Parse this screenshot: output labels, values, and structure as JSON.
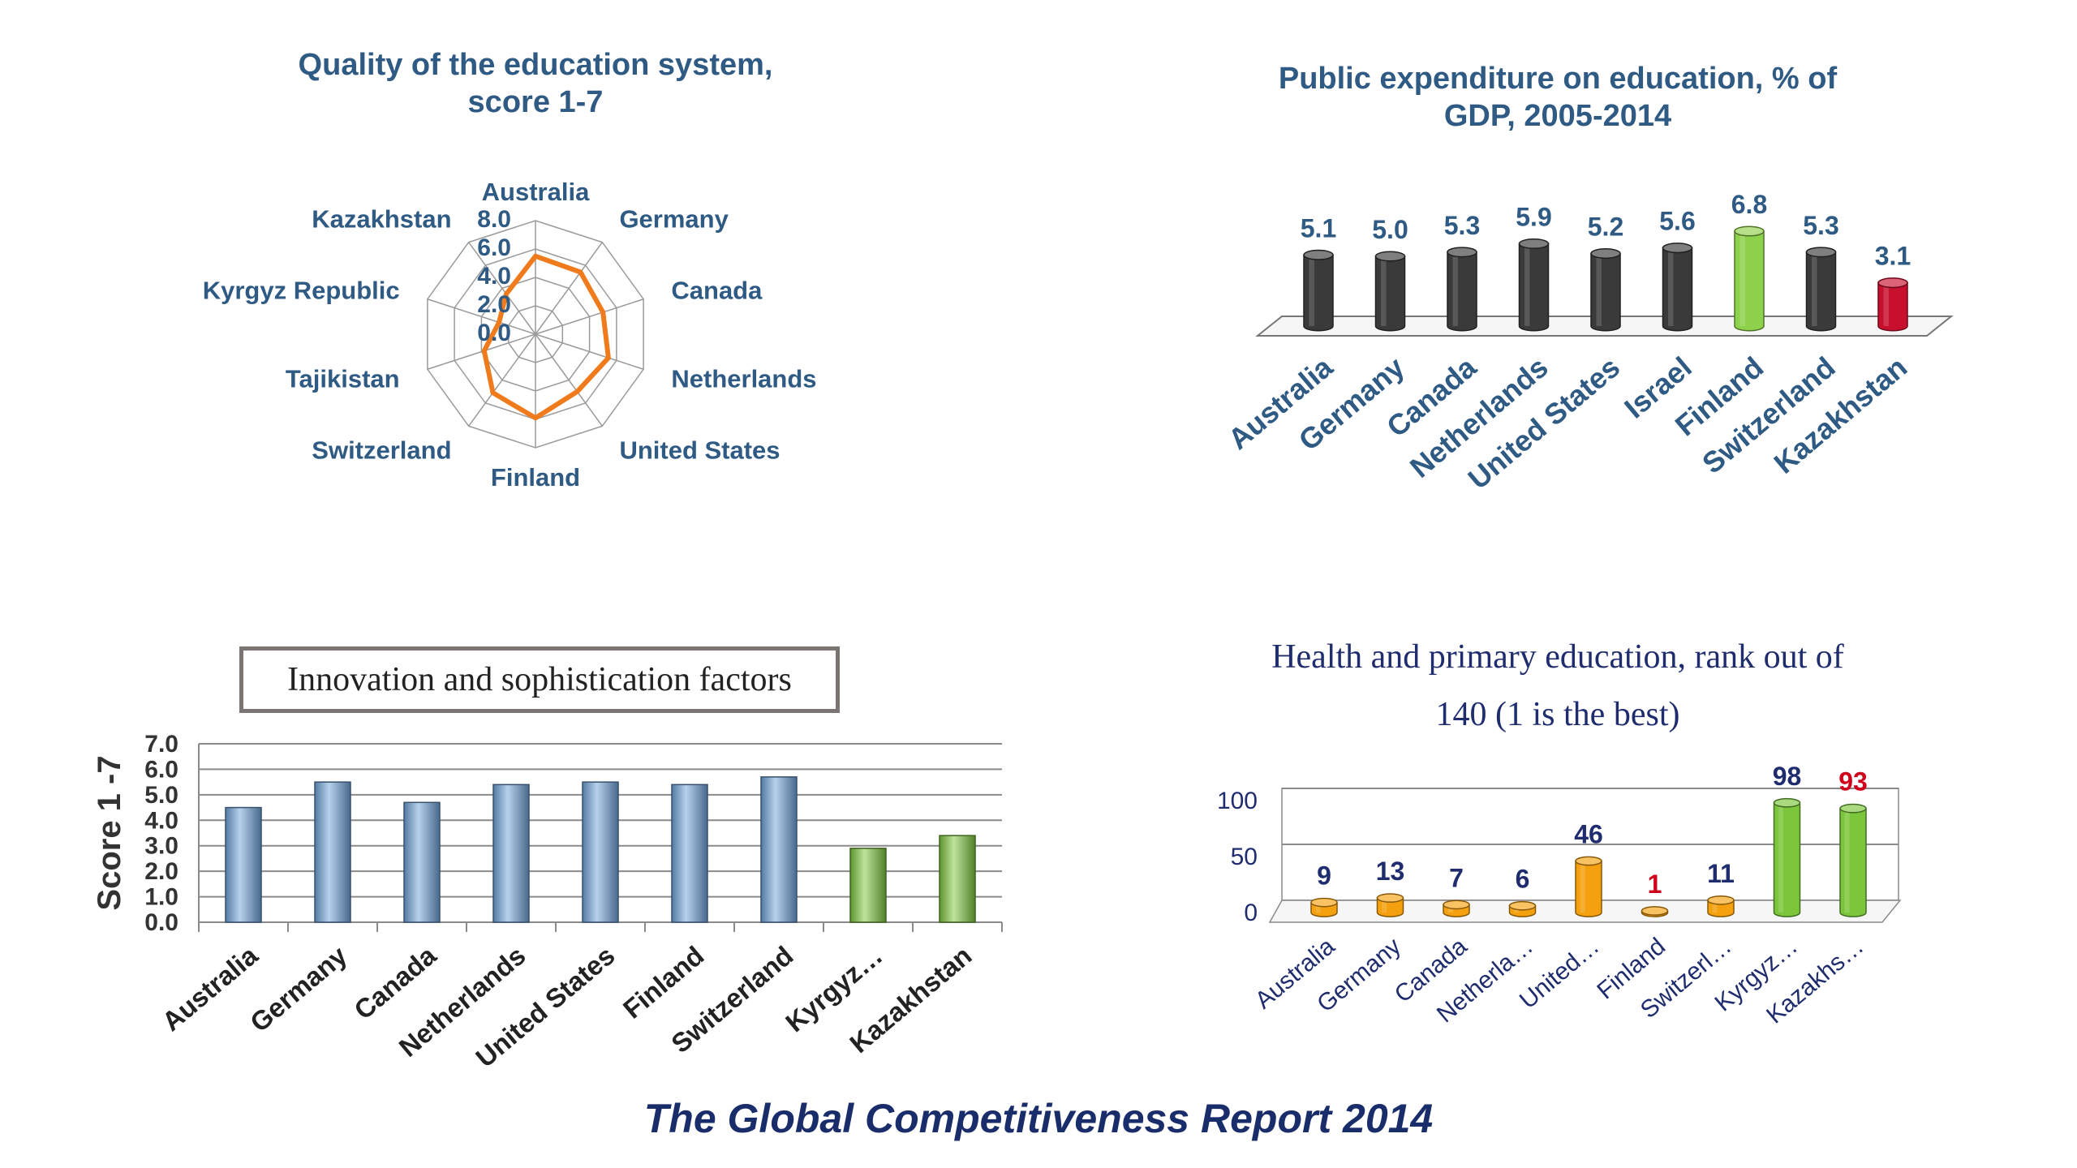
{
  "footer": "The Global Competitiveness Report 2014",
  "chart_data": [
    {
      "type": "radar",
      "title": "Quality of the education system, score 1-7",
      "title_lines": [
        "Quality of the education system,",
        "score 1-7"
      ],
      "categories": [
        "Australia",
        "Germany",
        "Canada",
        "Netherlands",
        "United States",
        "Finland",
        "Switzerland",
        "Tajikistan",
        "Kyrgyz Republic",
        "Kazakhstan"
      ],
      "values": [
        5.5,
        5.4,
        5.0,
        5.4,
        5.0,
        5.9,
        5.1,
        3.8,
        2.7,
        3.5
      ],
      "ticks": [
        "0.0",
        "2.0",
        "4.0",
        "6.0",
        "8.0"
      ],
      "rmax": 8,
      "line_color": "#f07b1c"
    },
    {
      "type": "bar",
      "title": "Public expenditure on education, % of GDP, 2005-2014",
      "title_lines": [
        "Public expenditure on education, % of",
        "GDP, 2005-2014"
      ],
      "categories": [
        "Australia",
        "Germany",
        "Canada",
        "Netherlands",
        "United States",
        "Israel",
        "Finland",
        "Switzerland",
        "Kazakhstan"
      ],
      "values": [
        5.1,
        5.0,
        5.3,
        5.9,
        5.2,
        5.6,
        6.8,
        5.3,
        3.1
      ],
      "labels": [
        "5.1",
        "5.0",
        "5.3",
        "5.9",
        "5.2",
        "5.6",
        "6.8",
        "5.3",
        "3.1"
      ],
      "colors": [
        "#3a3a3a",
        "#3a3a3a",
        "#3a3a3a",
        "#3a3a3a",
        "#3a3a3a",
        "#3a3a3a",
        "#8ed14b",
        "#3a3a3a",
        "#c8102e"
      ]
    },
    {
      "type": "bar",
      "title": "Innovation and sophistication factors",
      "ylabel": "Score 1 -7",
      "categories": [
        "Australia",
        "Germany",
        "Canada",
        "Netherlands",
        "United States",
        "Finland",
        "Switzerland",
        "Kyrgyz…",
        "Kazakhstan"
      ],
      "values": [
        4.5,
        5.5,
        4.7,
        5.4,
        5.5,
        5.4,
        5.7,
        2.9,
        3.4
      ],
      "ylim": [
        0,
        7
      ],
      "ticks": [
        "0.0",
        "1.0",
        "2.0",
        "3.0",
        "4.0",
        "5.0",
        "6.0",
        "7.0"
      ],
      "grid": true,
      "colors": [
        "#6ea2d8",
        "#6ea2d8",
        "#6ea2d8",
        "#6ea2d8",
        "#6ea2d8",
        "#6ea2d8",
        "#6ea2d8",
        "#7cc63c",
        "#7cc63c"
      ]
    },
    {
      "type": "bar",
      "title": "Health and primary education, rank out of 140 (1 is  the best)",
      "title_lines": [
        "Health and primary education, rank out of",
        "140 (1 is  the best)"
      ],
      "categories": [
        "Australia",
        "Germany",
        "Canada",
        "Netherla…",
        "United…",
        "Finland",
        "Switzerl…",
        "Kyrgyz…",
        "Kazakhs…"
      ],
      "values": [
        9,
        13,
        7,
        6,
        46,
        1,
        11,
        98,
        93
      ],
      "labels": [
        "9",
        "13",
        "7",
        "6",
        "46",
        "1",
        "11",
        "98",
        "93"
      ],
      "label_colors": [
        "#1f2c6e",
        "#1f2c6e",
        "#1f2c6e",
        "#1f2c6e",
        "#1f2c6e",
        "#d0021b",
        "#1f2c6e",
        "#1f2c6e",
        "#d0021b"
      ],
      "ylim": [
        0,
        100
      ],
      "ticks": [
        "0",
        "50",
        "100"
      ],
      "grid": true,
      "colors": [
        "#f5a10f",
        "#f5a10f",
        "#f5a10f",
        "#f5a10f",
        "#f5a10f",
        "#f5a10f",
        "#f5a10f",
        "#7cc63c",
        "#7cc63c"
      ]
    }
  ]
}
